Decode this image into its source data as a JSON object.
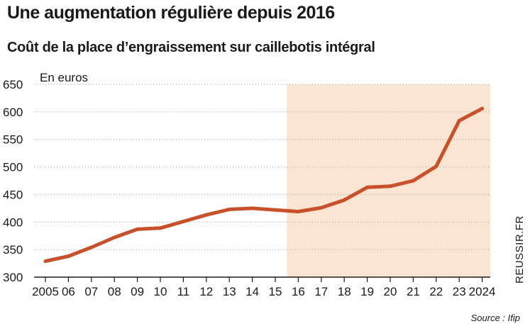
{
  "header": {
    "title": "Une augmentation régulière depuis 2016",
    "subtitle": "Coût de la place d’engraissement sur caillebotis intégral"
  },
  "footer": {
    "credit": "REUSSIR.FR",
    "source": "Source : Ifip"
  },
  "chart_data": {
    "type": "line",
    "ylabel": "En euros",
    "ylim": [
      300,
      650
    ],
    "yticks": [
      300,
      350,
      400,
      450,
      500,
      550,
      600,
      650
    ],
    "x": [
      "2005",
      "06",
      "07",
      "08",
      "09",
      "10",
      "11",
      "12",
      "13",
      "14",
      "15",
      "16",
      "17",
      "18",
      "19",
      "20",
      "21",
      "22",
      "23",
      "2024"
    ],
    "series": [
      {
        "values": [
          329,
          338,
          354,
          372,
          387,
          389,
          401,
          413,
          423,
          425,
          422,
          419,
          426,
          440,
          463,
          465,
          475,
          501,
          584,
          606
        ]
      }
    ],
    "highlight_range": [
      "16",
      "2024"
    ],
    "colors": {
      "line": "#c8502a",
      "highlight": "#fbe5d2",
      "grid": "#9a9a9a",
      "axis": "#1a1a1a"
    },
    "grid": "horizontal dotted"
  }
}
